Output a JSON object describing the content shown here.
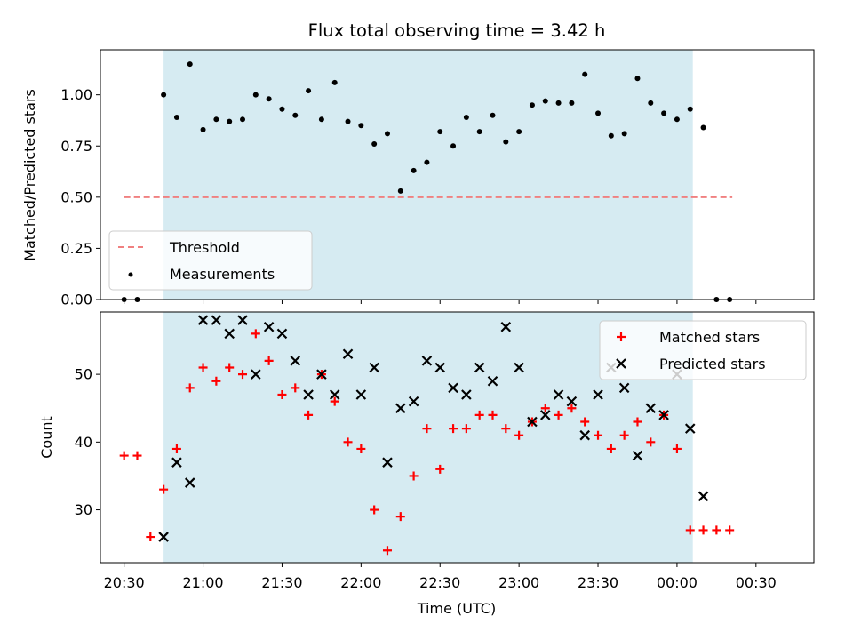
{
  "chart_data": [
    {
      "type": "scatter",
      "title": "Flux total observing time = 3.42 h",
      "ylabel": "Matched/Predicted stars",
      "xlabel": "",
      "x_ticks": [
        "20:30",
        "21:00",
        "21:30",
        "22:00",
        "22:30",
        "23:00",
        "23:30",
        "00:00",
        "00:30"
      ],
      "ylim": [
        0,
        1.22
      ],
      "y_ticks": [
        "0.00",
        "0.25",
        "0.50",
        "0.75",
        "1.00"
      ],
      "shaded_span": {
        "start": "20:45",
        "end": "00:06",
        "color": "#add8e6"
      },
      "threshold": {
        "name": "Threshold",
        "value": 0.5,
        "x_start": "20:30",
        "x_end": "00:21",
        "color": "#f08080"
      },
      "legend": {
        "position": "lower-left",
        "entries": [
          "Threshold",
          "Measurements"
        ]
      },
      "series": [
        {
          "name": "Measurements",
          "color": "#000000",
          "x": [
            "20:30",
            "20:35",
            "20:45",
            "20:50",
            "20:55",
            "21:00",
            "21:05",
            "21:10",
            "21:15",
            "21:20",
            "21:25",
            "21:30",
            "21:35",
            "21:40",
            "21:45",
            "21:50",
            "21:55",
            "22:00",
            "22:05",
            "22:10",
            "22:15",
            "22:20",
            "22:25",
            "22:30",
            "22:35",
            "22:40",
            "22:45",
            "22:50",
            "22:55",
            "23:00",
            "23:05",
            "23:10",
            "23:15",
            "23:20",
            "23:25",
            "23:30",
            "23:35",
            "23:40",
            "23:45",
            "23:50",
            "23:55",
            "00:00",
            "00:05",
            "00:10",
            "00:15",
            "00:20"
          ],
          "y": [
            0,
            0,
            1.0,
            0.89,
            1.15,
            0.83,
            0.88,
            0.87,
            0.88,
            1.0,
            0.98,
            0.93,
            0.9,
            1.02,
            0.88,
            1.06,
            0.87,
            0.85,
            0.76,
            0.81,
            0.53,
            0.63,
            0.67,
            0.82,
            0.75,
            0.89,
            0.82,
            0.9,
            0.77,
            0.82,
            0.95,
            0.97,
            0.96,
            0.96,
            1.1,
            0.91,
            0.8,
            0.81,
            1.08,
            0.96,
            0.91,
            0.88,
            0.93,
            0.84,
            0,
            0
          ]
        }
      ]
    },
    {
      "type": "scatter",
      "title": "",
      "xlabel": "Time (UTC)",
      "ylabel": "Count",
      "x_ticks": [
        "20:30",
        "21:00",
        "21:30",
        "22:00",
        "22:30",
        "23:00",
        "23:30",
        "00:00",
        "00:30"
      ],
      "ylim": [
        22.2,
        59.2
      ],
      "y_ticks": [
        "30",
        "40",
        "50"
      ],
      "shaded_span": {
        "start": "20:45",
        "end": "00:06",
        "color": "#add8e6"
      },
      "legend": {
        "position": "top-right",
        "entries": [
          "Matched stars",
          "Predicted stars"
        ]
      },
      "series": [
        {
          "name": "Matched stars",
          "marker": "plus",
          "color": "#ff0000",
          "x": [
            "20:30",
            "20:35",
            "20:40",
            "20:45",
            "20:50",
            "20:55",
            "21:00",
            "21:05",
            "21:10",
            "21:15",
            "21:20",
            "21:25",
            "21:30",
            "21:35",
            "21:40",
            "21:45",
            "21:50",
            "21:55",
            "22:00",
            "22:05",
            "22:10",
            "22:15",
            "22:20",
            "22:25",
            "22:30",
            "22:35",
            "22:40",
            "22:45",
            "22:50",
            "22:55",
            "23:00",
            "23:05",
            "23:10",
            "23:15",
            "23:20",
            "23:25",
            "23:30",
            "23:35",
            "23:40",
            "23:45",
            "23:50",
            "23:55",
            "00:00",
            "00:05",
            "00:10",
            "00:15",
            "00:20"
          ],
          "y": [
            38,
            38,
            26,
            33,
            39,
            48,
            51,
            49,
            51,
            50,
            56,
            52,
            47,
            48,
            44,
            50,
            46,
            40,
            39,
            30,
            24,
            29,
            35,
            42,
            36,
            42,
            42,
            44,
            44,
            42,
            41,
            43,
            45,
            44,
            45,
            43,
            41,
            39,
            41,
            43,
            40,
            44,
            39,
            27,
            27,
            27,
            27
          ]
        },
        {
          "name": "Predicted stars",
          "marker": "x",
          "color": "#000000",
          "x": [
            "20:45",
            "20:50",
            "20:55",
            "21:00",
            "21:05",
            "21:10",
            "21:15",
            "21:20",
            "21:25",
            "21:30",
            "21:35",
            "21:40",
            "21:45",
            "21:50",
            "21:55",
            "22:00",
            "22:05",
            "22:10",
            "22:15",
            "22:20",
            "22:25",
            "22:30",
            "22:35",
            "22:40",
            "22:45",
            "22:50",
            "22:55",
            "23:00",
            "23:05",
            "23:10",
            "23:15",
            "23:20",
            "23:25",
            "23:30",
            "23:35",
            "23:40",
            "23:45",
            "23:50",
            "23:55",
            "00:00",
            "00:05",
            "00:10"
          ],
          "y": [
            26,
            37,
            34,
            58,
            58,
            56,
            58,
            50,
            57,
            56,
            52,
            47,
            50,
            47,
            53,
            47,
            51,
            37,
            45,
            46,
            52,
            51,
            48,
            47,
            51,
            49,
            57,
            51,
            43,
            44,
            47,
            46,
            41,
            47,
            51,
            48,
            38,
            45,
            44,
            50,
            42,
            32
          ]
        }
      ]
    }
  ]
}
